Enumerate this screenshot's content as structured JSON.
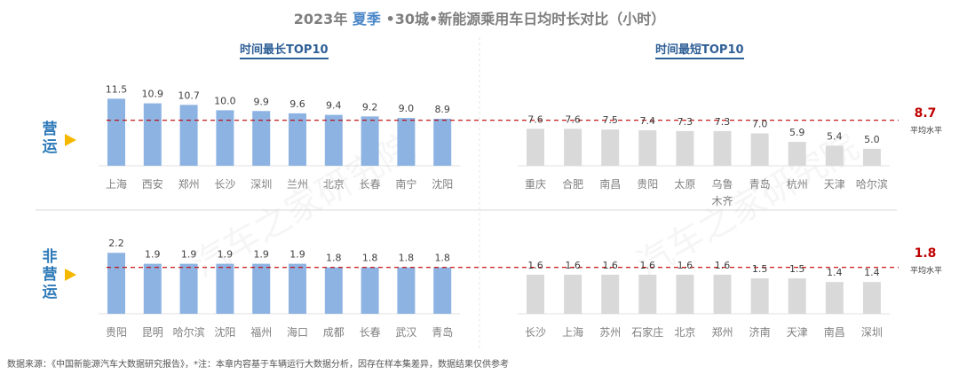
{
  "title": {
    "prefix": "2023年 ",
    "highlight": "夏季",
    "suffix": " •30城•新能源乘用车日均时长对比（小时）"
  },
  "subtitles": {
    "left": "时间最长TOP10",
    "right": "时间最短TOP10"
  },
  "rows": [
    {
      "label": "营运",
      "avg_value": "8.7",
      "avg_label": "平均水平"
    },
    {
      "label": "非营运",
      "avg_value": "1.8",
      "avg_label": "平均水平"
    }
  ],
  "footnote": "数据来源：《中国新能源汽车大数据研究报告》，*注：本章内容基于车辆运行大数据分析，因存在样本集差异，数据结果仅供参考",
  "watermark": "汽车之家研究院",
  "colors": {
    "longest": "#8db3e2",
    "shortest": "#d9d9d9",
    "avg_line": "#c00000",
    "highlight": "#4a86c8",
    "row_label": "#2e7ab8",
    "marker": "#f5b800"
  },
  "chart_data": [
    {
      "type": "bar",
      "row": "营运",
      "panel": "时间最长TOP10",
      "categories": [
        "上海",
        "西安",
        "郑州",
        "长沙",
        "深圳",
        "兰州",
        "北京",
        "长春",
        "南宁",
        "沈阳"
      ],
      "values": [
        11.5,
        10.9,
        10.7,
        10.0,
        9.9,
        9.6,
        9.4,
        9.2,
        9.0,
        8.9
      ],
      "average": 8.7,
      "ylim": [
        2.8,
        12
      ]
    },
    {
      "type": "bar",
      "row": "营运",
      "panel": "时间最短TOP10",
      "categories": [
        "重庆",
        "合肥",
        "南昌",
        "贵阳",
        "太原",
        "乌鲁木齐",
        "青岛",
        "杭州",
        "天津",
        "哈尔滨"
      ],
      "values": [
        7.6,
        7.6,
        7.5,
        7.4,
        7.3,
        7.3,
        7.0,
        5.9,
        5.4,
        5.0
      ],
      "average": 8.7,
      "ylim": [
        2.8,
        12
      ]
    },
    {
      "type": "bar",
      "row": "非营运",
      "panel": "时间最长TOP10",
      "categories": [
        "贵阳",
        "昆明",
        "哈尔滨",
        "沈阳",
        "福州",
        "海口",
        "成都",
        "长春",
        "武汉",
        "青岛"
      ],
      "values": [
        2.2,
        1.9,
        1.9,
        1.9,
        1.9,
        1.9,
        1.8,
        1.8,
        1.8,
        1.8
      ],
      "average": 1.8,
      "ylim": [
        0.53,
        2.4
      ]
    },
    {
      "type": "bar",
      "row": "非营运",
      "panel": "时间最短TOP10",
      "categories": [
        "长沙",
        "上海",
        "苏州",
        "石家庄",
        "北京",
        "郑州",
        "济南",
        "天津",
        "南昌",
        "深圳"
      ],
      "values": [
        1.6,
        1.6,
        1.6,
        1.6,
        1.6,
        1.6,
        1.5,
        1.5,
        1.4,
        1.4
      ],
      "average": 1.8,
      "ylim": [
        0.53,
        2.4
      ]
    }
  ]
}
